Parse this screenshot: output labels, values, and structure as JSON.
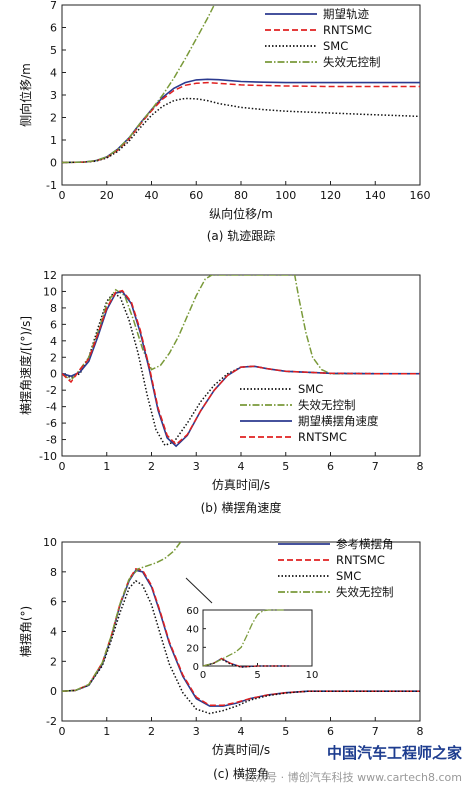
{
  "chart_data": [
    {
      "id": "a",
      "type": "line",
      "caption": "(a) 轨迹跟踪",
      "xlabel": "纵向位移/m",
      "ylabel": "侧向位移/m",
      "xlim": [
        0,
        160
      ],
      "ylim": [
        -1,
        7
      ],
      "xticks": [
        0,
        20,
        40,
        60,
        80,
        100,
        120,
        140,
        160
      ],
      "yticks": [
        -1,
        0,
        1,
        2,
        3,
        4,
        5,
        6,
        7
      ],
      "grid": false,
      "legend_position": "top-right",
      "series": [
        {
          "name": "期望轨迹",
          "color": "#2b3a8f",
          "dash": "solid",
          "x": [
            0,
            10,
            15,
            20,
            25,
            30,
            35,
            40,
            45,
            50,
            55,
            60,
            65,
            70,
            80,
            90,
            100,
            120,
            140,
            160
          ],
          "y": [
            0,
            0.02,
            0.08,
            0.25,
            0.6,
            1.1,
            1.75,
            2.35,
            2.9,
            3.3,
            3.55,
            3.67,
            3.7,
            3.68,
            3.6,
            3.57,
            3.55,
            3.55,
            3.55,
            3.55
          ]
        },
        {
          "name": "RNTSMC",
          "color": "#e02020",
          "dash": "dashed",
          "x": [
            0,
            10,
            15,
            20,
            25,
            30,
            35,
            40,
            45,
            50,
            55,
            60,
            65,
            70,
            80,
            90,
            100,
            120,
            140,
            160
          ],
          "y": [
            0,
            0.02,
            0.07,
            0.22,
            0.55,
            1.05,
            1.7,
            2.3,
            2.82,
            3.2,
            3.43,
            3.52,
            3.55,
            3.52,
            3.45,
            3.42,
            3.4,
            3.38,
            3.38,
            3.38
          ]
        },
        {
          "name": "SMC",
          "color": "#111111",
          "dash": "dotted",
          "x": [
            0,
            10,
            15,
            20,
            25,
            30,
            35,
            40,
            45,
            50,
            55,
            60,
            65,
            70,
            80,
            90,
            100,
            120,
            140,
            160
          ],
          "y": [
            0,
            0.02,
            0.06,
            0.2,
            0.5,
            0.95,
            1.55,
            2.1,
            2.5,
            2.75,
            2.85,
            2.83,
            2.75,
            2.62,
            2.45,
            2.35,
            2.28,
            2.2,
            2.12,
            2.05
          ]
        },
        {
          "name": "失效无控制",
          "color": "#7a9a3a",
          "dash": "dashdot",
          "x": [
            0,
            10,
            15,
            20,
            25,
            30,
            35,
            40,
            45,
            50,
            55,
            60,
            65,
            68
          ],
          "y": [
            0,
            0.02,
            0.08,
            0.25,
            0.6,
            1.1,
            1.75,
            2.35,
            3.0,
            3.75,
            4.6,
            5.5,
            6.4,
            7.0
          ]
        }
      ]
    },
    {
      "id": "b",
      "type": "line",
      "caption": "(b) 横摆角速度",
      "xlabel": "仿真时间/s",
      "ylabel": "横摆角速度/[(°)/s]",
      "xlim": [
        0,
        8
      ],
      "ylim": [
        -10,
        12
      ],
      "xticks": [
        0,
        1,
        2,
        3,
        4,
        5,
        6,
        7,
        8
      ],
      "yticks": [
        -10,
        -8,
        -6,
        -4,
        -2,
        0,
        2,
        4,
        6,
        8,
        10,
        12
      ],
      "grid": false,
      "legend_position": "bottom-right",
      "series": [
        {
          "name": "SMC",
          "color": "#111111",
          "dash": "dotted",
          "x": [
            0,
            0.2,
            0.4,
            0.6,
            0.8,
            1.0,
            1.15,
            1.3,
            1.5,
            1.7,
            1.9,
            2.1,
            2.3,
            2.5,
            2.8,
            3.1,
            3.4,
            3.7,
            4.0,
            4.3,
            4.6,
            5,
            6,
            7,
            8
          ],
          "y": [
            0,
            -0.5,
            0,
            2,
            5.5,
            8.8,
            9.8,
            9.3,
            6.5,
            2.5,
            -2.5,
            -6.8,
            -8.7,
            -8.3,
            -6,
            -3.4,
            -1.4,
            0,
            0.8,
            0.9,
            0.6,
            0.3,
            0.05,
            0,
            0
          ]
        },
        {
          "name": "失效无控制",
          "color": "#7a9a3a",
          "dash": "dashdot",
          "x": [
            0,
            0.2,
            0.4,
            0.6,
            0.8,
            1.0,
            1.2,
            1.4,
            1.6,
            1.8,
            2.0,
            2.2,
            2.4,
            2.6,
            2.8,
            3.0,
            3.2,
            3.35,
            5.2,
            5.3,
            5.45,
            5.6,
            5.8,
            6.0,
            6.5,
            7,
            8
          ],
          "y": [
            0,
            -0.8,
            0.5,
            2,
            5,
            8.5,
            10.2,
            9.5,
            6.5,
            3,
            0.5,
            1,
            2.5,
            4.5,
            7,
            9.5,
            11.5,
            12,
            12,
            9,
            5,
            2,
            0.5,
            0,
            0,
            0,
            0
          ]
        },
        {
          "name": "期望横摆角速度",
          "color": "#2b3a8f",
          "dash": "solid",
          "x": [
            0,
            0.2,
            0.4,
            0.6,
            0.8,
            1.0,
            1.2,
            1.35,
            1.55,
            1.75,
            1.95,
            2.15,
            2.35,
            2.55,
            2.8,
            3.1,
            3.4,
            3.7,
            4.0,
            4.3,
            4.6,
            5,
            6,
            7,
            8
          ],
          "y": [
            0,
            -0.3,
            0.2,
            1.5,
            4.5,
            7.8,
            9.8,
            10,
            8.5,
            5,
            0.5,
            -4.5,
            -7.8,
            -8.8,
            -7.5,
            -4.5,
            -2,
            -0.2,
            0.8,
            0.9,
            0.6,
            0.3,
            0.05,
            0,
            0
          ]
        },
        {
          "name": "RNTSMC",
          "color": "#e02020",
          "dash": "dashed",
          "x": [
            0,
            0.2,
            0.4,
            0.6,
            0.8,
            1.0,
            1.2,
            1.35,
            1.55,
            1.75,
            1.95,
            2.15,
            2.35,
            2.55,
            2.8,
            3.1,
            3.4,
            3.7,
            4.0,
            4.3,
            4.6,
            5,
            6,
            7,
            8
          ],
          "y": [
            0,
            -1,
            0.5,
            1.8,
            4.8,
            8,
            9.9,
            10.1,
            8.7,
            5.3,
            0.8,
            -4.2,
            -7.5,
            -8.6,
            -7.4,
            -4.5,
            -2,
            -0.2,
            0.8,
            0.9,
            0.6,
            0.3,
            0.05,
            0,
            0
          ]
        }
      ]
    },
    {
      "id": "c",
      "type": "line",
      "caption": "(c) 横摆角",
      "xlabel": "仿真时间/s",
      "ylabel": "横摆角(°)",
      "xlim": [
        0,
        8
      ],
      "ylim": [
        -2,
        10
      ],
      "xticks": [
        0,
        1,
        2,
        3,
        4,
        5,
        6,
        7,
        8
      ],
      "yticks": [
        -2,
        0,
        2,
        4,
        6,
        8,
        10
      ],
      "grid": false,
      "legend_position": "top-right",
      "series": [
        {
          "name": "参考横摆角",
          "color": "#2b3a8f",
          "dash": "solid",
          "x": [
            0,
            0.3,
            0.6,
            0.9,
            1.1,
            1.3,
            1.5,
            1.65,
            1.8,
            2.0,
            2.2,
            2.4,
            2.7,
            3.0,
            3.3,
            3.6,
            3.9,
            4.2,
            4.6,
            5,
            5.5,
            6,
            7,
            8
          ],
          "y": [
            0,
            0.05,
            0.4,
            1.8,
            3.6,
            5.8,
            7.4,
            8.1,
            8.0,
            7,
            5.2,
            3.2,
            1,
            -0.5,
            -1.0,
            -1.0,
            -0.8,
            -0.5,
            -0.25,
            -0.1,
            0,
            0,
            0,
            0
          ]
        },
        {
          "name": "RNTSMC",
          "color": "#e02020",
          "dash": "dashed",
          "x": [
            0,
            0.3,
            0.6,
            0.9,
            1.1,
            1.3,
            1.5,
            1.65,
            1.8,
            2.0,
            2.2,
            2.4,
            2.7,
            3.0,
            3.3,
            3.6,
            3.9,
            4.2,
            4.6,
            5,
            5.5,
            6,
            7,
            8
          ],
          "y": [
            0,
            0.05,
            0.45,
            1.9,
            3.7,
            5.9,
            7.5,
            8.2,
            8.1,
            7.1,
            5.3,
            3.3,
            1.1,
            -0.4,
            -0.95,
            -0.95,
            -0.75,
            -0.5,
            -0.25,
            -0.1,
            0,
            0,
            0,
            0
          ]
        },
        {
          "name": "SMC",
          "color": "#111111",
          "dash": "dotted",
          "x": [
            0,
            0.3,
            0.6,
            0.9,
            1.1,
            1.3,
            1.5,
            1.65,
            1.8,
            2.0,
            2.2,
            2.4,
            2.7,
            3.0,
            3.3,
            3.6,
            3.9,
            4.2,
            4.6,
            5,
            5.5,
            6,
            7,
            8
          ],
          "y": [
            0,
            0.05,
            0.4,
            1.7,
            3.4,
            5.3,
            6.9,
            7.4,
            7.1,
            5.8,
            3.8,
            1.8,
            -0.1,
            -1.2,
            -1.5,
            -1.3,
            -1,
            -0.6,
            -0.3,
            -0.12,
            0,
            0,
            0,
            0
          ]
        },
        {
          "name": "失效无控制",
          "color": "#7a9a3a",
          "dash": "dashdot",
          "x": [
            0,
            0.3,
            0.6,
            0.9,
            1.1,
            1.3,
            1.5,
            1.7,
            1.9,
            2.1,
            2.3,
            2.5,
            2.65
          ],
          "y": [
            0,
            0.05,
            0.45,
            1.9,
            3.7,
            5.9,
            7.5,
            8.2,
            8.4,
            8.6,
            8.9,
            9.4,
            10
          ]
        }
      ],
      "inset": {
        "xlim": [
          0,
          10
        ],
        "ylim": [
          0,
          60
        ],
        "xticks": [
          0,
          5,
          10
        ],
        "yticks": [
          0,
          20,
          40,
          60
        ],
        "series": [
          {
            "name": "参考横摆角",
            "color": "#2b3a8f",
            "dash": "solid",
            "x": [
              0,
              1,
              1.7,
              2.5,
              3.5,
              5,
              8
            ],
            "y": [
              0,
              3,
              8,
              3,
              -1,
              0,
              0
            ]
          },
          {
            "name": "RNTSMC",
            "color": "#e02020",
            "dash": "dashed",
            "x": [
              0,
              1,
              1.7,
              2.5,
              3.5,
              5,
              8
            ],
            "y": [
              0,
              3,
              8,
              3,
              -1,
              0,
              0
            ]
          },
          {
            "name": "SMC",
            "color": "#111111",
            "dash": "dotted",
            "x": [
              0,
              1,
              1.7,
              2.5,
              3.5,
              5,
              8
            ],
            "y": [
              0,
              3,
              7.4,
              2,
              -1.3,
              0,
              0
            ]
          },
          {
            "name": "失效无控制",
            "color": "#7a9a3a",
            "dash": "dashdot",
            "x": [
              0,
              1,
              2,
              3,
              3.5,
              4,
              4.5,
              5,
              5.5,
              6,
              7.5
            ],
            "y": [
              0,
              3,
              9,
              15,
              20,
              32,
              45,
              55,
              59,
              60,
              60
            ]
          }
        ]
      }
    }
  ],
  "watermark": {
    "title": "中国汽车工程师之家",
    "sub": "公众号 · 博创汽车科技",
    "site": "www.cartech8.com"
  }
}
